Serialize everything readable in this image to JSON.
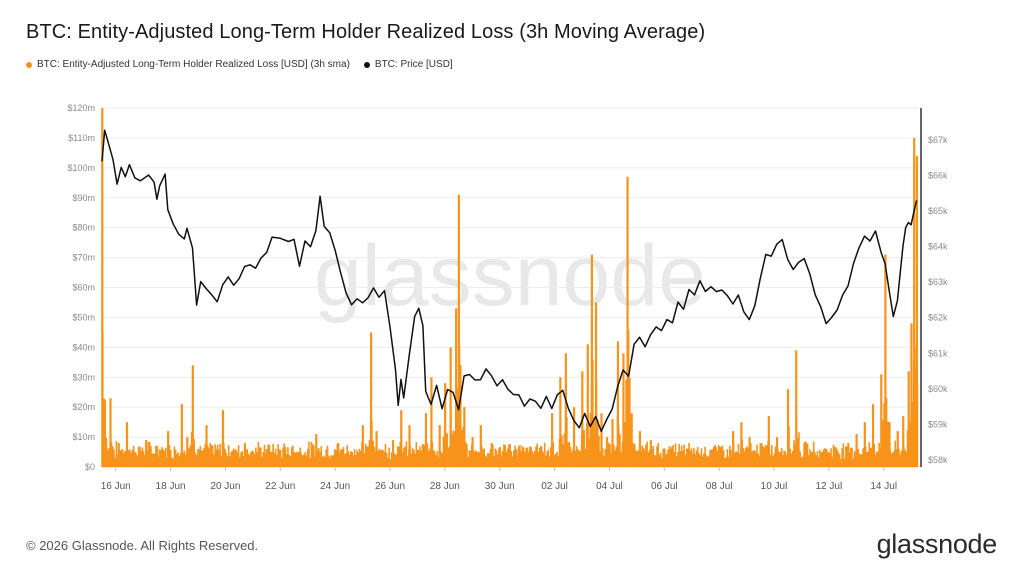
{
  "header": {
    "title": "BTC: Entity-Adjusted Long-Term Holder Realized Loss (3h Moving Average)"
  },
  "legend": {
    "items": [
      {
        "label": "BTC: Entity-Adjusted Long-Term Holder Realized Loss [USD] (3h sma)",
        "color": "#f7931a"
      },
      {
        "label": "BTC: Price [USD]",
        "color": "#111111"
      }
    ]
  },
  "footer": {
    "copyright": "© 2026 Glassnode. All Rights Reserved.",
    "brand": "glassnode"
  },
  "watermark": "glassnode",
  "chart_data": {
    "type": "bar",
    "title": "BTC: Entity-Adjusted Long-Term Holder Realized Loss (3h Moving Average)",
    "x_ticks": [
      "16 Jun",
      "18 Jun",
      "20 Jun",
      "22 Jun",
      "24 Jun",
      "26 Jun",
      "28 Jun",
      "30 Jun",
      "02 Jul",
      "04 Jul",
      "06 Jul",
      "08 Jul",
      "10 Jul",
      "12 Jul",
      "14 Jul"
    ],
    "x_range_days": [
      0,
      27.5
    ],
    "left_axis": {
      "ticks": [
        "$0",
        "$10m",
        "$20m",
        "$30m",
        "$40m",
        "$50m",
        "$60m",
        "$70m",
        "$80m",
        "$90m",
        "$100m",
        "$110m",
        "$120m"
      ],
      "ylim": [
        0,
        120
      ]
    },
    "right_axis": {
      "ticks": [
        "$58k",
        "$59k",
        "$60k",
        "$61k",
        "$62k",
        "$63k",
        "$64k",
        "$65k",
        "$66k",
        "$67k"
      ],
      "ylim": [
        57800,
        67900
      ]
    },
    "grid": true,
    "series": [
      {
        "name": "BTC: Entity-Adjusted Long-Term Holder Realized Loss [USD] (3h sma)",
        "color": "#f7931a",
        "type": "bar",
        "points": [
          [
            0.0,
            120
          ],
          [
            0.1,
            4
          ],
          [
            0.3,
            23
          ],
          [
            0.6,
            8
          ],
          [
            0.9,
            15
          ],
          [
            1.2,
            5
          ],
          [
            1.6,
            9
          ],
          [
            2.0,
            7
          ],
          [
            2.4,
            12
          ],
          [
            2.9,
            21
          ],
          [
            3.1,
            10
          ],
          [
            3.3,
            34
          ],
          [
            3.5,
            6
          ],
          [
            3.8,
            14
          ],
          [
            4.2,
            6
          ],
          [
            4.4,
            19
          ],
          [
            4.8,
            5
          ],
          [
            5.2,
            8
          ],
          [
            5.6,
            4
          ],
          [
            6.0,
            6
          ],
          [
            6.5,
            3
          ],
          [
            7.0,
            5
          ],
          [
            7.4,
            4
          ],
          [
            7.8,
            11
          ],
          [
            8.2,
            6
          ],
          [
            8.6,
            8
          ],
          [
            9.1,
            5
          ],
          [
            9.5,
            14
          ],
          [
            9.8,
            45
          ],
          [
            10.0,
            12
          ],
          [
            10.3,
            5
          ],
          [
            10.6,
            9
          ],
          [
            10.9,
            19
          ],
          [
            11.2,
            14
          ],
          [
            11.5,
            4
          ],
          [
            11.8,
            18
          ],
          [
            12.0,
            30
          ],
          [
            12.3,
            14
          ],
          [
            12.5,
            28
          ],
          [
            12.7,
            40
          ],
          [
            12.9,
            53
          ],
          [
            13.0,
            91
          ],
          [
            13.2,
            20
          ],
          [
            13.5,
            10
          ],
          [
            13.8,
            14
          ],
          [
            14.2,
            8
          ],
          [
            14.6,
            5
          ],
          [
            15.1,
            6
          ],
          [
            15.6,
            4
          ],
          [
            16.0,
            7
          ],
          [
            16.4,
            18
          ],
          [
            16.7,
            30
          ],
          [
            16.9,
            38
          ],
          [
            17.2,
            20
          ],
          [
            17.5,
            32
          ],
          [
            17.7,
            41
          ],
          [
            17.85,
            71
          ],
          [
            18.0,
            55
          ],
          [
            18.2,
            18
          ],
          [
            18.4,
            10
          ],
          [
            18.6,
            16
          ],
          [
            18.8,
            42
          ],
          [
            19.0,
            38
          ],
          [
            19.15,
            97
          ],
          [
            19.3,
            18
          ],
          [
            19.6,
            12
          ],
          [
            20.0,
            9
          ],
          [
            20.5,
            6
          ],
          [
            21.0,
            4
          ],
          [
            21.5,
            3
          ],
          [
            22.0,
            4
          ],
          [
            22.5,
            3
          ],
          [
            23.0,
            12
          ],
          [
            23.3,
            15
          ],
          [
            23.6,
            10
          ],
          [
            24.0,
            8
          ],
          [
            24.3,
            17
          ],
          [
            24.6,
            10
          ],
          [
            25.0,
            26
          ],
          [
            25.3,
            39
          ],
          [
            25.6,
            8
          ],
          [
            26.0,
            4
          ],
          [
            26.4,
            6
          ],
          [
            26.8,
            5
          ],
          [
            27.2,
            8
          ],
          [
            27.5,
            11
          ],
          [
            27.8,
            15
          ],
          [
            28.1,
            21
          ],
          [
            28.4,
            31
          ],
          [
            28.55,
            71
          ],
          [
            28.7,
            15
          ],
          [
            29.0,
            12
          ],
          [
            29.2,
            17
          ],
          [
            29.4,
            32
          ],
          [
            29.5,
            48
          ],
          [
            29.6,
            110
          ],
          [
            29.7,
            104
          ]
        ]
      },
      {
        "name": "BTC: Price [USD]",
        "color": "#111111",
        "type": "line",
        "points": [
          [
            0.0,
            66400
          ],
          [
            0.1,
            67300
          ],
          [
            0.25,
            66900
          ],
          [
            0.4,
            66500
          ],
          [
            0.55,
            65700
          ],
          [
            0.7,
            66200
          ],
          [
            0.85,
            65900
          ],
          [
            1.0,
            66300
          ],
          [
            1.2,
            66000
          ],
          [
            1.4,
            65900
          ],
          [
            1.7,
            66000
          ],
          [
            1.9,
            65800
          ],
          [
            2.0,
            65400
          ],
          [
            2.1,
            65700
          ],
          [
            2.3,
            66000
          ],
          [
            2.4,
            65100
          ],
          [
            2.6,
            64600
          ],
          [
            2.8,
            64400
          ],
          [
            3.0,
            64200
          ],
          [
            3.1,
            64500
          ],
          [
            3.3,
            63900
          ],
          [
            3.45,
            62400
          ],
          [
            3.6,
            63000
          ],
          [
            3.8,
            62800
          ],
          [
            4.0,
            62700
          ],
          [
            4.2,
            62500
          ],
          [
            4.4,
            62900
          ],
          [
            4.6,
            63100
          ],
          [
            4.8,
            62900
          ],
          [
            5.0,
            63100
          ],
          [
            5.2,
            63400
          ],
          [
            5.4,
            63500
          ],
          [
            5.6,
            63400
          ],
          [
            5.8,
            63700
          ],
          [
            6.0,
            63900
          ],
          [
            6.2,
            64200
          ],
          [
            6.5,
            64300
          ],
          [
            6.8,
            64100
          ],
          [
            7.0,
            64200
          ],
          [
            7.2,
            63500
          ],
          [
            7.4,
            64200
          ],
          [
            7.6,
            64000
          ],
          [
            7.8,
            64500
          ],
          [
            7.95,
            65400
          ],
          [
            8.1,
            64600
          ],
          [
            8.3,
            64400
          ],
          [
            8.5,
            63900
          ],
          [
            8.7,
            63300
          ],
          [
            8.9,
            62700
          ],
          [
            9.1,
            62400
          ],
          [
            9.3,
            62600
          ],
          [
            9.5,
            62400
          ],
          [
            9.7,
            62600
          ],
          [
            9.9,
            62800
          ],
          [
            10.1,
            62600
          ],
          [
            10.3,
            62700
          ],
          [
            10.5,
            61800
          ],
          [
            10.7,
            60600
          ],
          [
            10.8,
            59500
          ],
          [
            10.9,
            60300
          ],
          [
            11.0,
            59800
          ],
          [
            11.2,
            61000
          ],
          [
            11.4,
            62000
          ],
          [
            11.55,
            62200
          ],
          [
            11.7,
            61800
          ],
          [
            11.8,
            60000
          ],
          [
            11.9,
            59800
          ],
          [
            12.0,
            59500
          ],
          [
            12.2,
            60100
          ],
          [
            12.4,
            59400
          ],
          [
            12.6,
            60000
          ],
          [
            12.8,
            59900
          ],
          [
            13.0,
            59400
          ],
          [
            13.2,
            60300
          ],
          [
            13.4,
            60400
          ],
          [
            13.6,
            60200
          ],
          [
            13.8,
            60300
          ],
          [
            14.0,
            60500
          ],
          [
            14.2,
            60300
          ],
          [
            14.4,
            60100
          ],
          [
            14.6,
            60300
          ],
          [
            14.8,
            60000
          ],
          [
            15.0,
            59900
          ],
          [
            15.2,
            59800
          ],
          [
            15.4,
            59500
          ],
          [
            15.6,
            59700
          ],
          [
            15.8,
            59600
          ],
          [
            16.0,
            59400
          ],
          [
            16.2,
            59800
          ],
          [
            16.4,
            59500
          ],
          [
            16.6,
            59800
          ],
          [
            16.8,
            59900
          ],
          [
            17.0,
            59400
          ],
          [
            17.2,
            59100
          ],
          [
            17.4,
            58900
          ],
          [
            17.6,
            59300
          ],
          [
            17.8,
            58900
          ],
          [
            18.0,
            59200
          ],
          [
            18.2,
            58800
          ],
          [
            18.4,
            59100
          ],
          [
            18.6,
            59400
          ],
          [
            18.8,
            60100
          ],
          [
            19.0,
            60600
          ],
          [
            19.2,
            60400
          ],
          [
            19.4,
            61300
          ],
          [
            19.6,
            61400
          ],
          [
            19.8,
            61200
          ],
          [
            20.0,
            61500
          ],
          [
            20.2,
            61700
          ],
          [
            20.4,
            61600
          ],
          [
            20.6,
            62000
          ],
          [
            20.8,
            61900
          ],
          [
            21.0,
            62400
          ],
          [
            21.2,
            62300
          ],
          [
            21.4,
            62800
          ],
          [
            21.6,
            62600
          ],
          [
            21.8,
            63000
          ],
          [
            22.0,
            62800
          ],
          [
            22.2,
            62900
          ],
          [
            22.4,
            62700
          ],
          [
            22.6,
            62800
          ],
          [
            22.8,
            62600
          ],
          [
            23.0,
            62400
          ],
          [
            23.2,
            62600
          ],
          [
            23.4,
            62200
          ],
          [
            23.6,
            62000
          ],
          [
            23.8,
            62300
          ],
          [
            24.0,
            63100
          ],
          [
            24.2,
            63800
          ],
          [
            24.4,
            63700
          ],
          [
            24.6,
            64000
          ],
          [
            24.8,
            64200
          ],
          [
            25.0,
            63700
          ],
          [
            25.2,
            63300
          ],
          [
            25.4,
            63500
          ],
          [
            25.6,
            63700
          ],
          [
            25.8,
            63200
          ],
          [
            26.0,
            62700
          ],
          [
            26.2,
            62300
          ],
          [
            26.4,
            61900
          ],
          [
            26.6,
            62000
          ],
          [
            26.8,
            62200
          ],
          [
            27.0,
            62700
          ],
          [
            27.2,
            62900
          ],
          [
            27.4,
            63500
          ],
          [
            27.6,
            64000
          ],
          [
            27.8,
            64300
          ],
          [
            28.0,
            64200
          ],
          [
            28.2,
            64500
          ],
          [
            28.4,
            63800
          ],
          [
            28.55,
            63500
          ],
          [
            28.7,
            62700
          ],
          [
            28.85,
            62100
          ],
          [
            29.0,
            62500
          ],
          [
            29.1,
            63300
          ],
          [
            29.2,
            64000
          ],
          [
            29.3,
            64500
          ],
          [
            29.4,
            64700
          ],
          [
            29.5,
            64600
          ],
          [
            29.6,
            65000
          ],
          [
            29.7,
            65300
          ]
        ]
      }
    ]
  }
}
